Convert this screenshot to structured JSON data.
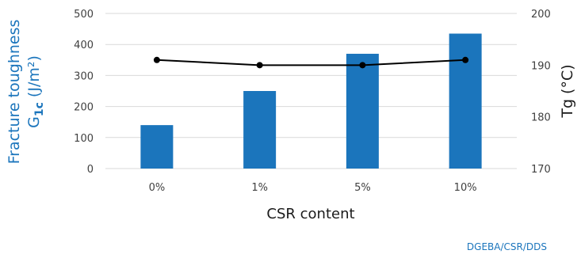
{
  "chart_data": {
    "type": "bar+line",
    "categories": [
      "0%",
      "1%",
      "5%",
      "10%"
    ],
    "series": [
      {
        "type": "bar",
        "axis": "left",
        "values": [
          140,
          250,
          370,
          435
        ]
      },
      {
        "type": "line",
        "axis": "right",
        "values": [
          191,
          190,
          190,
          191
        ]
      }
    ],
    "xlabel": "CSR content",
    "ylabel_left": {
      "line1": "Fracture toughness",
      "line2_main": "G",
      "line2_sub": "1c",
      "line2_rest": " (J/m²)"
    },
    "ylabel_right": "Tg  (°C)",
    "ylim_left": [
      0,
      500
    ],
    "yticks_left": [
      "0",
      "100",
      "200",
      "300",
      "400",
      "500"
    ],
    "ylim_right": [
      170,
      200
    ],
    "yticks_right": [
      "170",
      "180",
      "190",
      "200"
    ],
    "grid": true,
    "annotation": "DGEBA/CSR/DDS",
    "colors": {
      "bar": "#1b75bc",
      "line": "#000000",
      "left_label": "#1b75bc",
      "annotation": "#1b75bc",
      "grid": "#d9d9d9"
    }
  }
}
